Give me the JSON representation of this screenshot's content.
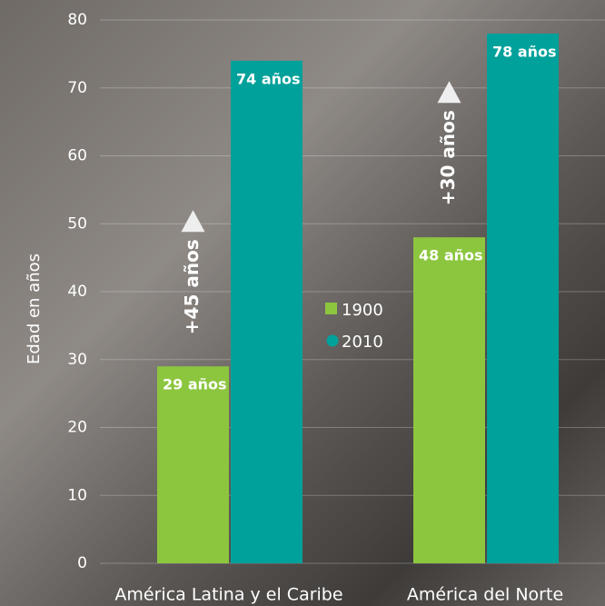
{
  "chart_data": {
    "type": "bar",
    "y_label": "Edad en años",
    "categories": [
      "América Latina y el Caribe",
      "América del Norte"
    ],
    "series": [
      {
        "name": "1900",
        "color": "#8cc63f",
        "values": [
          29,
          48
        ],
        "value_labels": [
          "29 años",
          "48 años"
        ]
      },
      {
        "name": "2010",
        "color": "#00a19a",
        "values": [
          74,
          78
        ],
        "value_labels": [
          "74 años",
          "78 años"
        ]
      }
    ],
    "annotations": [
      "+45 años",
      "+30 años"
    ],
    "ylim": [
      0,
      80
    ],
    "yticks": [
      0,
      10,
      20,
      30,
      40,
      50,
      60,
      70,
      80
    ],
    "grid": true
  }
}
